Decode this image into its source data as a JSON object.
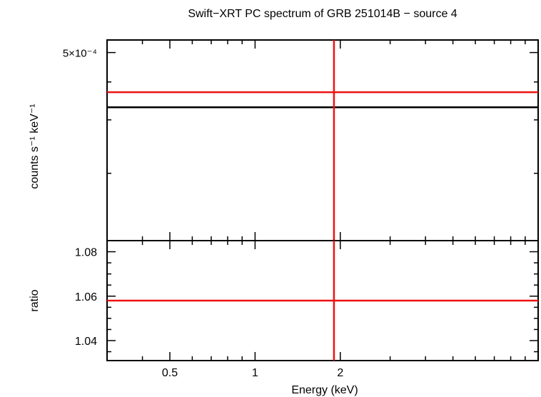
{
  "chart_data": [
    {
      "type": "line",
      "title": "Swift−XRT PC spectrum of GRB 251014B − source 4",
      "ylabel": "counts s⁻¹ keV⁻¹",
      "xscale": "log",
      "yscale": "log",
      "xlim": [
        0.3,
        10
      ],
      "ylim": [
        0.00012,
        0.00055
      ],
      "yticks": [
        {
          "value": 0.0005,
          "label": "5×10⁻⁴"
        }
      ],
      "series": [
        {
          "type": "hline",
          "y": 0.00037,
          "color": "#ee1111"
        },
        {
          "type": "hline",
          "y": 0.00033,
          "color": "#000000"
        },
        {
          "type": "vline",
          "x": 1.9,
          "color": "#ee1111"
        }
      ]
    },
    {
      "type": "line",
      "ylabel": "ratio",
      "xlabel": "Energy (keV)",
      "xscale": "log",
      "xlim": [
        0.3,
        10
      ],
      "ylim": [
        1.031,
        1.085
      ],
      "xticks": [
        {
          "value": 0.5,
          "label": "0.5"
        },
        {
          "value": 1,
          "label": "1"
        },
        {
          "value": 2,
          "label": "2"
        }
      ],
      "yticks": [
        {
          "value": 1.04,
          "label": "1.04"
        },
        {
          "value": 1.06,
          "label": "1.06"
        },
        {
          "value": 1.08,
          "label": "1.08"
        }
      ],
      "series": [
        {
          "type": "hline",
          "y": 1.058,
          "color": "#ee1111"
        },
        {
          "type": "vline",
          "x": 1.9,
          "color": "#ee1111"
        }
      ]
    }
  ]
}
